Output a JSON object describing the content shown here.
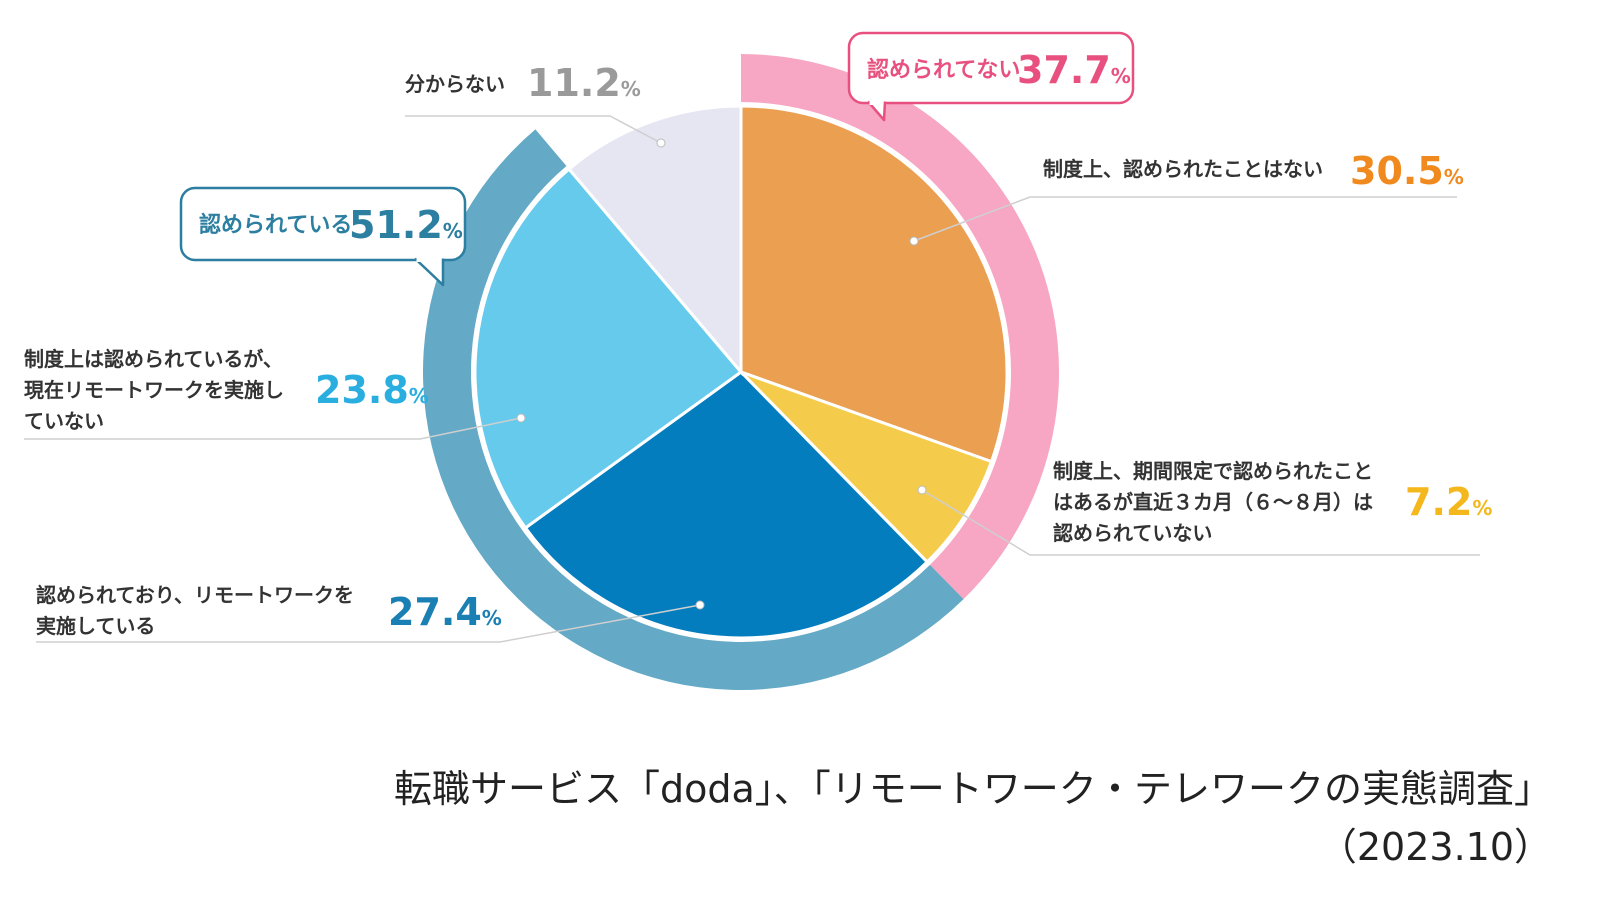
{
  "chart_data": {
    "type": "pie",
    "unit": "%",
    "slices": [
      {
        "label": "制度上、認められたことはない",
        "lines": [
          "制度上、認められたことはない"
        ],
        "value": 30.5,
        "color": "#EA9F51",
        "text_color": "#F08A1E"
      },
      {
        "label": "制度上、期間限定で認められたことはあるが直近３カ月（６〜８月）は認められていない",
        "lines": [
          "制度上、期間限定で認められたこと",
          "はあるが直近３カ月（６〜８月）は",
          "認められていない"
        ],
        "value": 7.2,
        "color": "#F4CB4A",
        "text_color": "#F4B81C"
      },
      {
        "label": "認められており、リモートワークを実施している",
        "lines": [
          "認められており、リモートワークを",
          "実施している"
        ],
        "value": 27.4,
        "color": "#047DBF",
        "text_color": "#1A7FB3"
      },
      {
        "label": "制度上は認められているが、現在リモートワークを実施していない",
        "lines": [
          "制度上は認められているが、",
          "現在リモートワークを実施し",
          "ていない"
        ],
        "value": 23.8,
        "color": "#65CAEC",
        "text_color": "#2AAEE0"
      },
      {
        "label": "分からない",
        "lines": [
          "分からない"
        ],
        "value": 11.2,
        "color": "#E6E6F3",
        "text_color": "#9A9A9A"
      }
    ],
    "groups": [
      {
        "label": "認められてない",
        "value": 37.7,
        "color": "#F7A6C3",
        "text_color": "#E8517F"
      },
      {
        "label": "認められている",
        "value": 51.2,
        "color": "#64A9C5",
        "text_color": "#2C7FA0"
      }
    ]
  },
  "source": {
    "line1": "転職サービス「doda」、「リモートワーク・テレワークの実態調査」",
    "line2": "（2023.10）"
  }
}
